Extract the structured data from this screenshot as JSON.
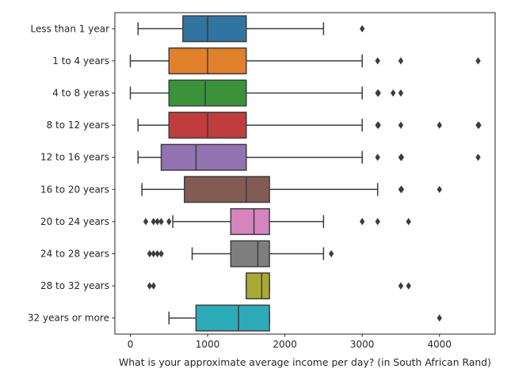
{
  "chart_data": {
    "type": "boxplot",
    "orientation": "horizontal",
    "title": "",
    "xlabel": "What is your approximate average income per day? (in South African Rand)",
    "ylabel": "",
    "xlim": [
      -200,
      4720
    ],
    "xticks": [
      0,
      1000,
      2000,
      3000,
      4000
    ],
    "grid": false,
    "categories": [
      "Less than 1 year",
      "1 to 4 years",
      "4 to 8 yeras",
      "8 to 12 years",
      "12 to 16 years",
      "16 to 20 years",
      "20 to 24 years",
      "24 to 28 years",
      "28 to 32 years",
      "32 years or more"
    ],
    "boxes": [
      {
        "whislo": 100,
        "q1": 680,
        "med": 1000,
        "q3": 1500,
        "whishi": 2500,
        "fliers": [
          3000
        ],
        "color": "#3274a1"
      },
      {
        "whislo": 0,
        "q1": 500,
        "med": 1000,
        "q3": 1500,
        "whishi": 3000,
        "fliers": [
          3200,
          3500,
          4500
        ],
        "color": "#e1812c"
      },
      {
        "whislo": 0,
        "q1": 500,
        "med": 970,
        "q3": 1500,
        "whishi": 3000,
        "fliers": [
          3200,
          3210,
          3400,
          3500
        ],
        "color": "#3a923a"
      },
      {
        "whislo": 100,
        "q1": 500,
        "med": 1000,
        "q3": 1500,
        "whishi": 3000,
        "fliers": [
          3200,
          3210,
          3500,
          4000,
          4500,
          4510
        ],
        "color": "#c03d3e"
      },
      {
        "whislo": 100,
        "q1": 400,
        "med": 850,
        "q3": 1500,
        "whishi": 3000,
        "fliers": [
          3200,
          3500,
          3510,
          4500
        ],
        "color": "#9372b2"
      },
      {
        "whislo": 150,
        "q1": 700,
        "med": 1500,
        "q3": 1800,
        "whishi": 3200,
        "fliers": [
          3500,
          3510,
          4000
        ],
        "color": "#845b53"
      },
      {
        "whislo": 550,
        "q1": 1300,
        "med": 1600,
        "q3": 1800,
        "whishi": 2500,
        "fliers": [
          200,
          300,
          350,
          400,
          500,
          3000,
          3200,
          3600
        ],
        "color": "#d684bd"
      },
      {
        "whislo": 800,
        "q1": 1300,
        "med": 1650,
        "q3": 1800,
        "whishi": 2500,
        "fliers": [
          250,
          300,
          350,
          400,
          2600
        ],
        "color": "#7f7f7f"
      },
      {
        "whislo": 1500,
        "q1": 1500,
        "med": 1700,
        "q3": 1800,
        "whishi": 1800,
        "fliers": [
          250,
          300,
          3500,
          3600
        ],
        "color": "#a9aa35"
      },
      {
        "whislo": 500,
        "q1": 850,
        "med": 1400,
        "q3": 1800,
        "whishi": 1800,
        "fliers": [
          4000
        ],
        "color": "#2eabb8"
      }
    ]
  }
}
